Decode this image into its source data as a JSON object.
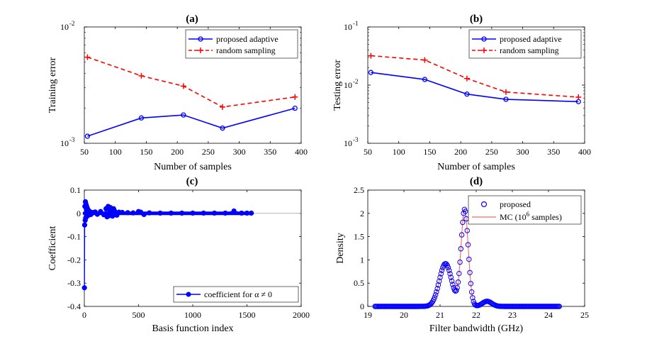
{
  "chart_data": [
    {
      "panel": "(a)",
      "type": "line",
      "title": "(a)",
      "xlabel": "Number of samples",
      "ylabel": "Training error",
      "xlim": [
        50,
        400
      ],
      "ylim": [
        0.001,
        0.01
      ],
      "yscale": "log",
      "xticks": [
        "50",
        "100",
        "150",
        "200",
        "250",
        "300",
        "350",
        "400"
      ],
      "yticks": [
        {
          "base": "10",
          "exp": "-2"
        },
        {
          "base": "10",
          "exp": "-3"
        }
      ],
      "legend_position": "top-right",
      "series": [
        {
          "name": "proposed adaptive",
          "color": "#0000ff",
          "style": "solid",
          "marker": "circle",
          "x": [
            55,
            142,
            210,
            273,
            390
          ],
          "y": [
            0.00115,
            0.00165,
            0.00175,
            0.00135,
            0.002
          ]
        },
        {
          "name": "random sampling",
          "color": "#ff0000",
          "style": "dashed",
          "marker": "plus",
          "x": [
            55,
            142,
            210,
            273,
            390
          ],
          "y": [
            0.0055,
            0.0038,
            0.0031,
            0.00205,
            0.0025
          ]
        }
      ]
    },
    {
      "panel": "(b)",
      "type": "line",
      "title": "(b)",
      "xlabel": "Number of samples",
      "ylabel": "Testing error",
      "xlim": [
        50,
        400
      ],
      "ylim": [
        0.001,
        0.1
      ],
      "yscale": "log",
      "xticks": [
        "50",
        "100",
        "150",
        "200",
        "250",
        "300",
        "350",
        "400"
      ],
      "yticks": [
        {
          "base": "10",
          "exp": "-1"
        },
        {
          "base": "10",
          "exp": "-2"
        },
        {
          "base": "10",
          "exp": "-3"
        }
      ],
      "legend_position": "top-right",
      "series": [
        {
          "name": "proposed adaptive",
          "color": "#0000ff",
          "style": "solid",
          "marker": "circle",
          "x": [
            55,
            142,
            210,
            273,
            390
          ],
          "y": [
            0.0165,
            0.0125,
            0.007,
            0.0057,
            0.0052
          ]
        },
        {
          "name": "random sampling",
          "color": "#ff0000",
          "style": "dashed",
          "marker": "plus",
          "x": [
            55,
            142,
            210,
            273,
            390
          ],
          "y": [
            0.032,
            0.027,
            0.013,
            0.0076,
            0.0062
          ]
        }
      ]
    },
    {
      "panel": "(c)",
      "type": "scatter",
      "title": "(c)",
      "xlabel": "Basis function index",
      "ylabel": "Coefficient",
      "xlim": [
        0,
        2000
      ],
      "ylim": [
        -0.4,
        0.1
      ],
      "xticks": [
        "0",
        "500",
        "1000",
        "1500",
        "2000"
      ],
      "yticks": [
        "0.1",
        "0",
        "-0.1",
        "-0.2",
        "-0.3",
        "-0.4"
      ],
      "legend_position": "bottom-right",
      "series": [
        {
          "name": "coefficient for α ≠ 0",
          "color": "#0000ff",
          "marker": "filled-circle",
          "x": [
            1,
            3,
            5,
            8,
            10,
            12,
            15,
            18,
            20,
            22,
            25,
            28,
            30,
            35,
            40,
            45,
            50,
            60,
            70,
            80,
            100,
            120,
            150,
            180,
            200,
            210,
            220,
            230,
            240,
            250,
            260,
            270,
            280,
            300,
            320,
            350,
            400,
            450,
            500,
            520,
            550,
            600,
            700,
            800,
            900,
            1000,
            1100,
            1200,
            1300,
            1380,
            1450,
            1500,
            1540
          ],
          "y": [
            -0.32,
            -0.05,
            0.03,
            -0.03,
            0.05,
            -0.02,
            0.04,
            0.02,
            -0.015,
            0.03,
            0.01,
            -0.01,
            0.02,
            0.008,
            -0.008,
            0.01,
            0.005,
            -0.005,
            0.004,
            0.003,
            0.006,
            -0.004,
            0.008,
            -0.006,
            0.02,
            -0.015,
            0.03,
            -0.01,
            0.025,
            0.015,
            -0.012,
            0.02,
            0.01,
            -0.008,
            0.005,
            0.004,
            0.003,
            0.002,
            0.008,
            0.005,
            -0.005,
            0.002,
            0.001,
            0.001,
            0.001,
            0.001,
            0.001,
            0.001,
            0.001,
            0.01,
            0.001,
            0.001,
            0.001
          ]
        }
      ]
    },
    {
      "panel": "(d)",
      "type": "line",
      "title": "(d)",
      "xlabel": "Filter bandwidth (GHz)",
      "ylabel": "Density",
      "xlim": [
        19,
        25
      ],
      "ylim": [
        0,
        2.5
      ],
      "xticks": [
        "19",
        "20",
        "21",
        "22",
        "23",
        "24",
        "25"
      ],
      "yticks": [
        "2.5",
        "2",
        "1.5",
        "1",
        "0.5",
        "0"
      ],
      "legend_position": "top-right",
      "series": [
        {
          "name": "proposed",
          "color": "#0000ff",
          "marker": "open-circle"
        },
        {
          "name": "MC (10",
          "name_sup": "6",
          "name_suffix": " samples)",
          "color": "#ff6666",
          "style": "solid"
        }
      ],
      "density_model": {
        "xmin": 19.2,
        "xmax": 24.3,
        "components": [
          {
            "weight": 0.92,
            "mean": 21.15,
            "sd": 0.17
          },
          {
            "weight": 2.08,
            "mean": 21.68,
            "sd": 0.1
          },
          {
            "weight": 0.11,
            "mean": 22.3,
            "sd": 0.13
          }
        ]
      }
    }
  ]
}
